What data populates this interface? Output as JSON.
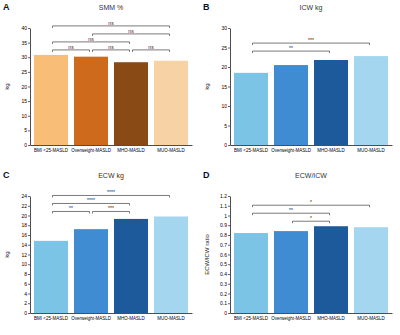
{
  "chart_data": [
    {
      "type": "bar",
      "panel_label": "A",
      "title": "SMM %",
      "y_label": "kg",
      "categories": [
        "BMI <25-MASLD",
        "Overweight-MASLD",
        "MHO-MASLD",
        "MUO-MASLD"
      ],
      "values": [
        30.8,
        30.2,
        28.3,
        28.8
      ],
      "colors": [
        "#f8be78",
        "#cd6a1c",
        "#8a4a16",
        "#f6d2a4"
      ],
      "ylim": [
        0,
        40
      ],
      "yticks": [
        0,
        5,
        10,
        15,
        20,
        25,
        30,
        35,
        40
      ],
      "annotations": [
        {
          "pair": [
            "BMI <25-MASLD",
            "Overweight-MASLD"
          ],
          "label": "ns"
        },
        {
          "pair": [
            "Overweight-MASLD",
            "MHO-MASLD"
          ],
          "label": "ns"
        },
        {
          "pair": [
            "MHO-MASLD",
            "MUO-MASLD"
          ],
          "label": "ns"
        },
        {
          "pair": [
            "BMI <25-MASLD",
            "MHO-MASLD"
          ],
          "label": "ns"
        },
        {
          "pair": [
            "Overweight-MASLD",
            "MUO-MASLD"
          ],
          "label": "ns"
        },
        {
          "pair": [
            "BMI <25-MASLD",
            "MUO-MASLD"
          ],
          "label": "ns"
        }
      ]
    },
    {
      "type": "bar",
      "panel_label": "B",
      "title": "ICW kg",
      "y_label": "kg",
      "categories": [
        "BMI <25-MASLD",
        "Overweight-MASLD",
        "MHO-MASLD",
        "MUO-MASLD"
      ],
      "values": [
        18.5,
        20.5,
        21.8,
        22.8
      ],
      "colors": [
        "#7cc4e6",
        "#3f8cd2",
        "#1c5a9c",
        "#a4d6ef"
      ],
      "ylim": [
        0,
        30
      ],
      "yticks": [
        0,
        5,
        10,
        15,
        20,
        25,
        30
      ],
      "annotations": [
        {
          "pair": [
            "BMI <25-MASLD",
            "MHO-MASLD"
          ],
          "label": "**"
        },
        {
          "pair": [
            "BMI <25-MASLD",
            "MUO-MASLD"
          ],
          "label": "***"
        }
      ]
    },
    {
      "type": "bar",
      "panel_label": "C",
      "title": "ECW kg",
      "y_label": "kg",
      "categories": [
        "BMI <25-MASLD",
        "Overweight-MASLD",
        "MHO-MASLD",
        "MUO-MASLD"
      ],
      "values": [
        14.8,
        17.2,
        19.3,
        19.8
      ],
      "colors": [
        "#7cc4e6",
        "#3f8cd2",
        "#1c5a9c",
        "#a4d6ef"
      ],
      "ylim": [
        0,
        24
      ],
      "yticks": [
        0,
        2,
        4,
        6,
        8,
        10,
        12,
        14,
        16,
        18,
        20,
        22,
        24
      ],
      "annotations": [
        {
          "pair": [
            "BMI <25-MASLD",
            "Overweight-MASLD"
          ],
          "label": "**"
        },
        {
          "pair": [
            "Overweight-MASLD",
            "MHO-MASLD"
          ],
          "label": "***"
        },
        {
          "pair": [
            "BMI <25-MASLD",
            "MHO-MASLD"
          ],
          "label": "****"
        },
        {
          "pair": [
            "BMI <25-MASLD",
            "MUO-MASLD"
          ],
          "label": "****"
        }
      ]
    },
    {
      "type": "bar",
      "panel_label": "D",
      "title": "ECW/ICW",
      "y_label": "ECW/ICW ratio",
      "categories": [
        "BMI <25-MASLD",
        "Overweight-MASLD",
        "MHO-MASLD",
        "MUO-MASLD"
      ],
      "values": [
        0.82,
        0.84,
        0.89,
        0.88
      ],
      "colors": [
        "#7cc4e6",
        "#3f8cd2",
        "#1c5a9c",
        "#a4d6ef"
      ],
      "ylim": [
        0,
        1.2
      ],
      "yticks": [
        0,
        0.1,
        0.2,
        0.3,
        0.4,
        0.5,
        0.6,
        0.7,
        0.8,
        0.9,
        1,
        1.1,
        1.2
      ],
      "annotations": [
        {
          "pair": [
            "Overweight-MASLD",
            "MHO-MASLD"
          ],
          "label": "*"
        },
        {
          "pair": [
            "BMI <25-MASLD",
            "MHO-MASLD"
          ],
          "label": "**"
        },
        {
          "pair": [
            "BMI <25-MASLD",
            "MUO-MASLD"
          ],
          "label": "*"
        }
      ]
    }
  ]
}
